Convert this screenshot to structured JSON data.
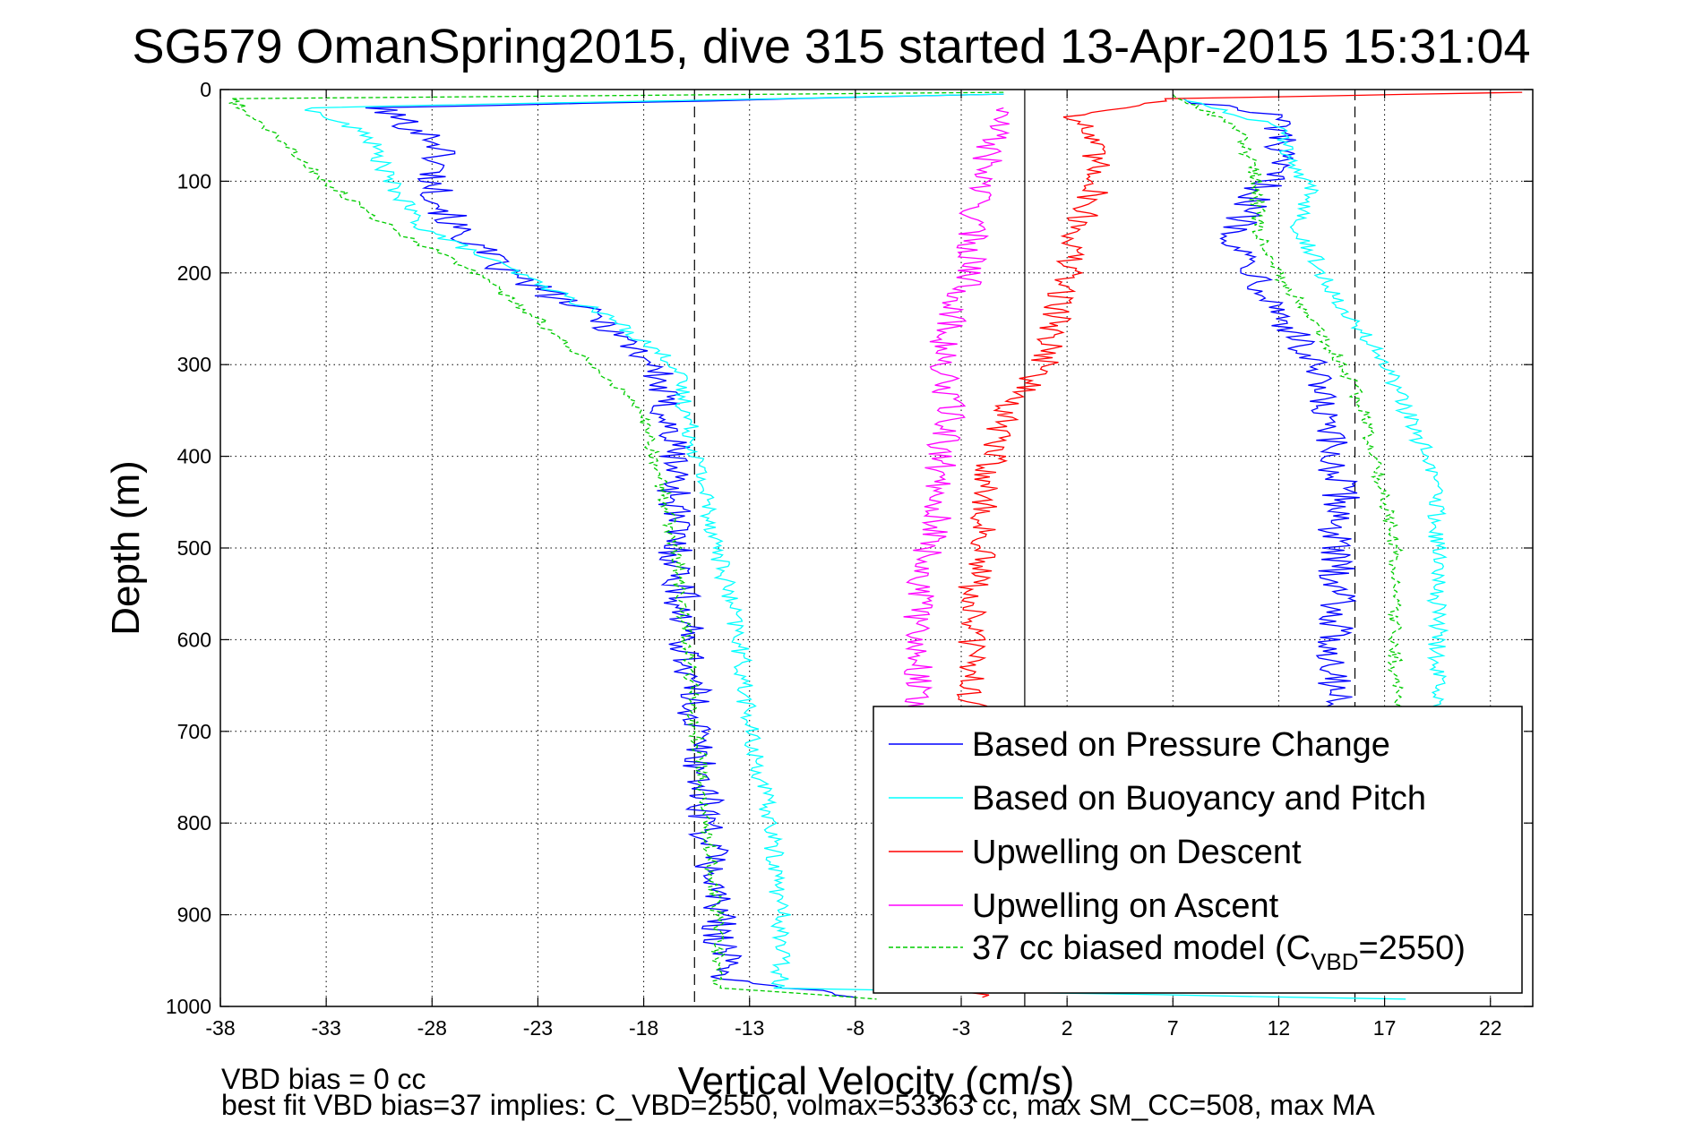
{
  "chart_data": {
    "type": "line",
    "title": "SG579 OmanSpring2015, dive 315 started 13-Apr-2015 15:31:04",
    "xlabel": "Vertical Velocity (cm/s)",
    "ylabel": "Depth (m)",
    "xlim": [
      -38,
      24
    ],
    "ylim": [
      0,
      1000
    ],
    "y_reversed": true,
    "grid": true,
    "legend_placement": "bottom-right",
    "x_ticks": [
      -38,
      -33,
      -28,
      -23,
      -18,
      -13,
      -8,
      -3,
      2,
      7,
      12,
      17,
      22
    ],
    "y_ticks": [
      0,
      100,
      200,
      300,
      400,
      500,
      600,
      700,
      800,
      900,
      1000
    ],
    "reference_lines": [
      {
        "x": -15.6,
        "style": "dashed",
        "color": "#000000"
      },
      {
        "x": 0,
        "style": "solid",
        "color": "#000000"
      },
      {
        "x": 15.6,
        "style": "dashed",
        "color": "#000000"
      }
    ],
    "series": [
      {
        "name": "Based on Pressure Change",
        "color": "#0000ff",
        "style": "solid",
        "descent": [
          [
            -1.0,
            5
          ],
          [
            -30.5,
            20
          ],
          [
            -27.5,
            60
          ],
          [
            -28.0,
            100
          ],
          [
            -27.0,
            150
          ],
          [
            -24.5,
            200
          ],
          [
            -20.0,
            250
          ],
          [
            -17.5,
            300
          ],
          [
            -17.0,
            350
          ],
          [
            -16.5,
            400
          ],
          [
            -16.5,
            500
          ],
          [
            -16.0,
            600
          ],
          [
            -15.5,
            700
          ],
          [
            -15.0,
            800
          ],
          [
            -14.5,
            900
          ],
          [
            -14.0,
            970
          ],
          [
            -8.0,
            990
          ]
        ],
        "ascent": [
          [
            7.5,
            10
          ],
          [
            12.0,
            30
          ],
          [
            12.0,
            60
          ],
          [
            11.5,
            100
          ],
          [
            10.5,
            130
          ],
          [
            10.0,
            170
          ],
          [
            11.0,
            200
          ],
          [
            12.5,
            260
          ],
          [
            13.5,
            300
          ],
          [
            14.0,
            350
          ],
          [
            14.5,
            400
          ],
          [
            15.0,
            450
          ],
          [
            14.5,
            500
          ],
          [
            15.0,
            550
          ],
          [
            14.5,
            600
          ],
          [
            15.0,
            700
          ]
        ]
      },
      {
        "name": "Based on Buoyancy and Pitch",
        "color": "#00ffff",
        "style": "solid",
        "descent": [
          [
            -1.0,
            5
          ],
          [
            -34.0,
            20
          ],
          [
            -31.0,
            50
          ],
          [
            -30.0,
            100
          ],
          [
            -28.5,
            150
          ],
          [
            -24.0,
            200
          ],
          [
            -19.5,
            250
          ],
          [
            -16.5,
            300
          ],
          [
            -15.5,
            400
          ],
          [
            -14.5,
            500
          ],
          [
            -13.5,
            600
          ],
          [
            -13.0,
            700
          ],
          [
            -12.0,
            800
          ],
          [
            -11.5,
            900
          ],
          [
            -11.5,
            980
          ],
          [
            18.0,
            992
          ]
        ],
        "ascent": [
          [
            7.5,
            10
          ],
          [
            12.0,
            40
          ],
          [
            12.5,
            80
          ],
          [
            13.5,
            110
          ],
          [
            13.0,
            150
          ],
          [
            14.0,
            200
          ],
          [
            15.5,
            250
          ],
          [
            17.0,
            300
          ],
          [
            18.0,
            350
          ],
          [
            19.0,
            400
          ],
          [
            19.5,
            450
          ],
          [
            19.5,
            500
          ],
          [
            19.5,
            550
          ],
          [
            19.5,
            600
          ],
          [
            19.5,
            700
          ]
        ]
      },
      {
        "name": "Upwelling on Descent",
        "color": "#ff0000",
        "style": "solid",
        "descent": [
          [
            23.5,
            3
          ],
          [
            7.0,
            10
          ],
          [
            2.5,
            30
          ],
          [
            3.0,
            50
          ],
          [
            3.5,
            100
          ],
          [
            2.5,
            150
          ],
          [
            2.0,
            200
          ],
          [
            1.5,
            250
          ],
          [
            1.0,
            300
          ],
          [
            -1.0,
            350
          ],
          [
            -1.5,
            400
          ],
          [
            -2.0,
            450
          ],
          [
            -2.0,
            500
          ],
          [
            -2.5,
            550
          ],
          [
            -2.5,
            600
          ],
          [
            -2.5,
            700
          ],
          [
            -2.5,
            800
          ],
          [
            -2.5,
            900
          ],
          [
            -2.0,
            990
          ]
        ],
        "ascent": []
      },
      {
        "name": "Upwelling on Ascent",
        "color": "#ff00ff",
        "style": "solid",
        "descent": [],
        "ascent": [
          [
            -1.0,
            20
          ],
          [
            -1.5,
            50
          ],
          [
            -2.0,
            100
          ],
          [
            -2.5,
            150
          ],
          [
            -2.5,
            200
          ],
          [
            -3.5,
            250
          ],
          [
            -4.0,
            300
          ],
          [
            -3.5,
            350
          ],
          [
            -4.0,
            400
          ],
          [
            -4.0,
            450
          ],
          [
            -4.5,
            500
          ],
          [
            -5.0,
            550
          ],
          [
            -5.0,
            600
          ],
          [
            -5.0,
            700
          ]
        ]
      },
      {
        "name": "37 cc biased model (C",
        "sub": "VBD",
        "suffix": "=2550)",
        "color": "#00cc00",
        "style": "dashed",
        "descent": [
          [
            -1.0,
            3
          ],
          [
            -37.5,
            10
          ],
          [
            -35.5,
            50
          ],
          [
            -33.0,
            100
          ],
          [
            -30.0,
            150
          ],
          [
            -26.0,
            200
          ],
          [
            -23.0,
            250
          ],
          [
            -20.5,
            300
          ],
          [
            -18.0,
            350
          ],
          [
            -17.5,
            400
          ],
          [
            -16.5,
            500
          ],
          [
            -16.0,
            600
          ],
          [
            -15.5,
            700
          ],
          [
            -15.0,
            800
          ],
          [
            -14.5,
            900
          ],
          [
            -14.5,
            980
          ],
          [
            -7.0,
            992
          ]
        ],
        "ascent": [
          [
            7.0,
            5
          ],
          [
            10.0,
            40
          ],
          [
            11.0,
            100
          ],
          [
            11.0,
            150
          ],
          [
            12.0,
            200
          ],
          [
            13.5,
            250
          ],
          [
            15.0,
            300
          ],
          [
            16.0,
            350
          ],
          [
            16.5,
            400
          ],
          [
            17.0,
            450
          ],
          [
            17.5,
            500
          ],
          [
            17.5,
            550
          ],
          [
            17.5,
            600
          ],
          [
            17.5,
            700
          ]
        ]
      }
    ],
    "annotations": [
      "VBD bias = 0 cc",
      "best fit VBD bias=37 implies: C_VBD=2550, volmax=53363 cc, max SM_CC=508, max MA"
    ]
  }
}
